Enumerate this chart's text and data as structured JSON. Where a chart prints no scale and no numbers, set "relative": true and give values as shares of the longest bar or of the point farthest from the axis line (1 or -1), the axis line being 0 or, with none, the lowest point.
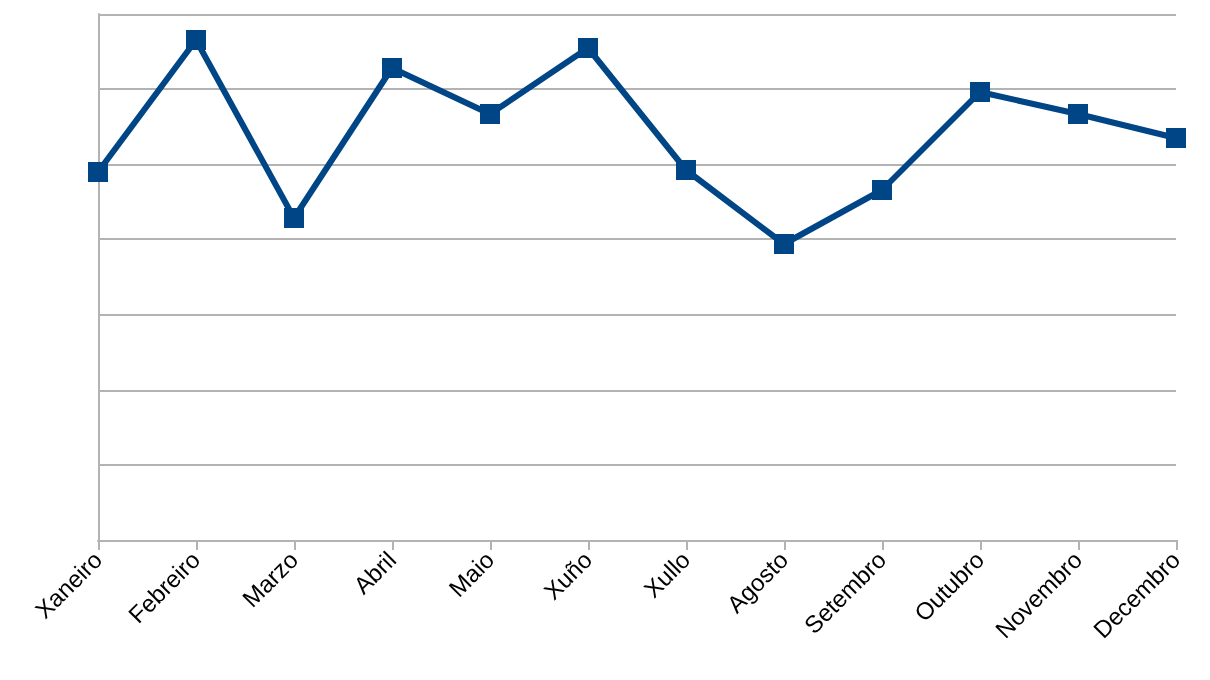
{
  "chart_data": {
    "type": "line",
    "relative": true,
    "categories": [
      "Xaneiro",
      "Febreiro",
      "Marzo",
      "Abril",
      "Maio",
      "Xuño",
      "Xullo",
      "Agosto",
      "Setembro",
      "Outubro",
      "Novembro",
      "Decembro"
    ],
    "series": [
      {
        "color": "#004586",
        "values": [
          0.736,
          1,
          0.644,
          0.944,
          0.852,
          0.984,
          0.74,
          0.592,
          0.7,
          0.896,
          0.852,
          0.804
        ]
      }
    ],
    "grid": "y",
    "marker": "square",
    "line_style": "solid"
  }
}
